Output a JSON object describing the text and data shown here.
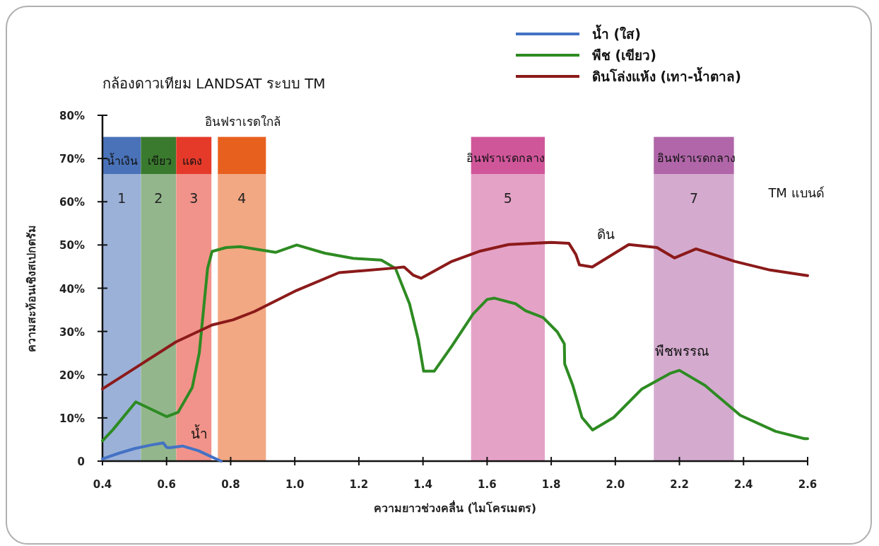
{
  "chart_data": {
    "type": "line",
    "title": "กล้องดาวเทียม LANDSAT ระบบ TM",
    "xlabel": "ความยาวช่วงคลื่น (ไมโครเมตร)",
    "ylabel": "ความสะท้อนเชิงสเปกตรัม",
    "xlim": [
      0.4,
      2.6
    ],
    "ylim": [
      0,
      80
    ],
    "xticks": [
      {
        "value": 0.4,
        "label": "0.4"
      },
      {
        "value": 0.6,
        "label": "0.6"
      },
      {
        "value": 0.8,
        "label": "0.8"
      },
      {
        "value": 1,
        "label": "1.0"
      },
      {
        "value": 1.2,
        "label": "1.2"
      },
      {
        "value": 1.4,
        "label": "1.4"
      },
      {
        "value": 1.6,
        "label": "1.6"
      },
      {
        "value": 1.8,
        "label": "1.8"
      },
      {
        "value": 2,
        "label": "2.0"
      },
      {
        "value": 2.2,
        "label": "2.2"
      },
      {
        "value": 2.4,
        "label": "2.4"
      },
      {
        "value": 2.6,
        "label": "2.6"
      }
    ],
    "yticks": [
      {
        "value": 0,
        "label": "0"
      },
      {
        "value": 10,
        "label": "10%"
      },
      {
        "value": 20,
        "label": "20%"
      },
      {
        "value": 30,
        "label": "30%"
      },
      {
        "value": 40,
        "label": "40%"
      },
      {
        "value": 50,
        "label": "50%"
      },
      {
        "value": 60,
        "label": "60%"
      },
      {
        "value": 70,
        "label": "70%"
      },
      {
        "value": 80,
        "label": "80%"
      }
    ],
    "grid": false,
    "legend": "top right",
    "marker": "none",
    "line_style": "solid",
    "series": [
      {
        "name": "น้ำ (ใส)",
        "color": "#4472c4",
        "x": [
          0.4,
          0.45,
          0.5,
          0.55,
          0.59,
          0.6,
          0.61,
          0.65,
          0.7,
          0.74,
          0.77
        ],
        "values": [
          0.5,
          1.8,
          2.9,
          3.7,
          4.2,
          3.2,
          3.1,
          3.5,
          2.4,
          1.0,
          0
        ]
      },
      {
        "name": "พืช (เขียว)",
        "color": "#2e8b22",
        "x": [
          0.4,
          0.433,
          0.504,
          0.6,
          0.636,
          0.68,
          0.702,
          0.715,
          0.728,
          0.742,
          0.786,
          0.83,
          0.94,
          1.006,
          1.094,
          1.182,
          1.27,
          1.314,
          1.358,
          1.385,
          1.402,
          1.435,
          1.49,
          1.556,
          1.6,
          1.623,
          1.689,
          1.72,
          1.775,
          1.819,
          1.841,
          1.842,
          1.867,
          1.896,
          1.929,
          1.995,
          2.083,
          2.171,
          2.2,
          2.28,
          2.39,
          2.5,
          2.59,
          2.6
        ],
        "values": [
          4.7,
          7.3,
          13.7,
          10.3,
          11.3,
          17,
          25,
          34.8,
          44.6,
          48.5,
          49.4,
          49.6,
          48.3,
          50,
          48.1,
          46.9,
          46.5,
          44.6,
          36.4,
          28.2,
          20.8,
          20.8,
          26.6,
          34,
          37.4,
          37.7,
          36.4,
          34.8,
          33.2,
          29.9,
          27.1,
          22.5,
          17.6,
          10.1,
          7.2,
          10.1,
          16.7,
          20.3,
          21,
          17.5,
          10.6,
          6.9,
          5.2,
          5.2
        ]
      },
      {
        "name": "ดินโล่งแห้ง (เทา-น้ำตาล)",
        "color": "#8b1a1a",
        "x": [
          0.4,
          0.52,
          0.63,
          0.742,
          0.808,
          0.874,
          1.006,
          1.138,
          1.3,
          1.341,
          1.37,
          1.394,
          1.49,
          1.579,
          1.667,
          1.8,
          1.855,
          1.877,
          1.888,
          1.928,
          1.998,
          2.042,
          2.13,
          2.185,
          2.252,
          2.373,
          2.483,
          2.6
        ],
        "values": [
          16.7,
          22.4,
          27.6,
          31.5,
          32.7,
          34.6,
          39.5,
          43.6,
          44.6,
          44.9,
          43.0,
          42.3,
          46.2,
          48.6,
          50.1,
          50.6,
          50.4,
          47.8,
          45.4,
          44.9,
          48.1,
          50.1,
          49.4,
          47,
          49.1,
          46.2,
          44.2,
          42.9
        ]
      }
    ],
    "bands": [
      {
        "axis": "x",
        "from": 0.4,
        "to": 0.52,
        "label": "1",
        "color": "#4a72b8"
      },
      {
        "axis": "x",
        "from": 0.52,
        "to": 0.63,
        "label": "2",
        "color": "#3a7a2e"
      },
      {
        "axis": "x",
        "from": 0.63,
        "to": 0.74,
        "label": "3",
        "color": "#e53a2a"
      },
      {
        "axis": "x",
        "from": 0.76,
        "to": 0.91,
        "label": "4",
        "color": "#e8601e"
      },
      {
        "axis": "x",
        "from": 1.55,
        "to": 1.78,
        "label": "5",
        "color": "#d0569a"
      },
      {
        "axis": "x",
        "from": 2.12,
        "to": 2.37,
        "label": "7",
        "color": "#b066a8"
      }
    ],
    "annotations": [
      "น้ำเงิน",
      "เขียว",
      "แดง",
      "อินฟราเรดใกล้",
      "อินฟราเรดกลาง",
      "อินฟราเรดกลาง",
      "TM แบนด์",
      "น้ำ",
      "ดิน",
      "พืชพรรณ"
    ]
  }
}
